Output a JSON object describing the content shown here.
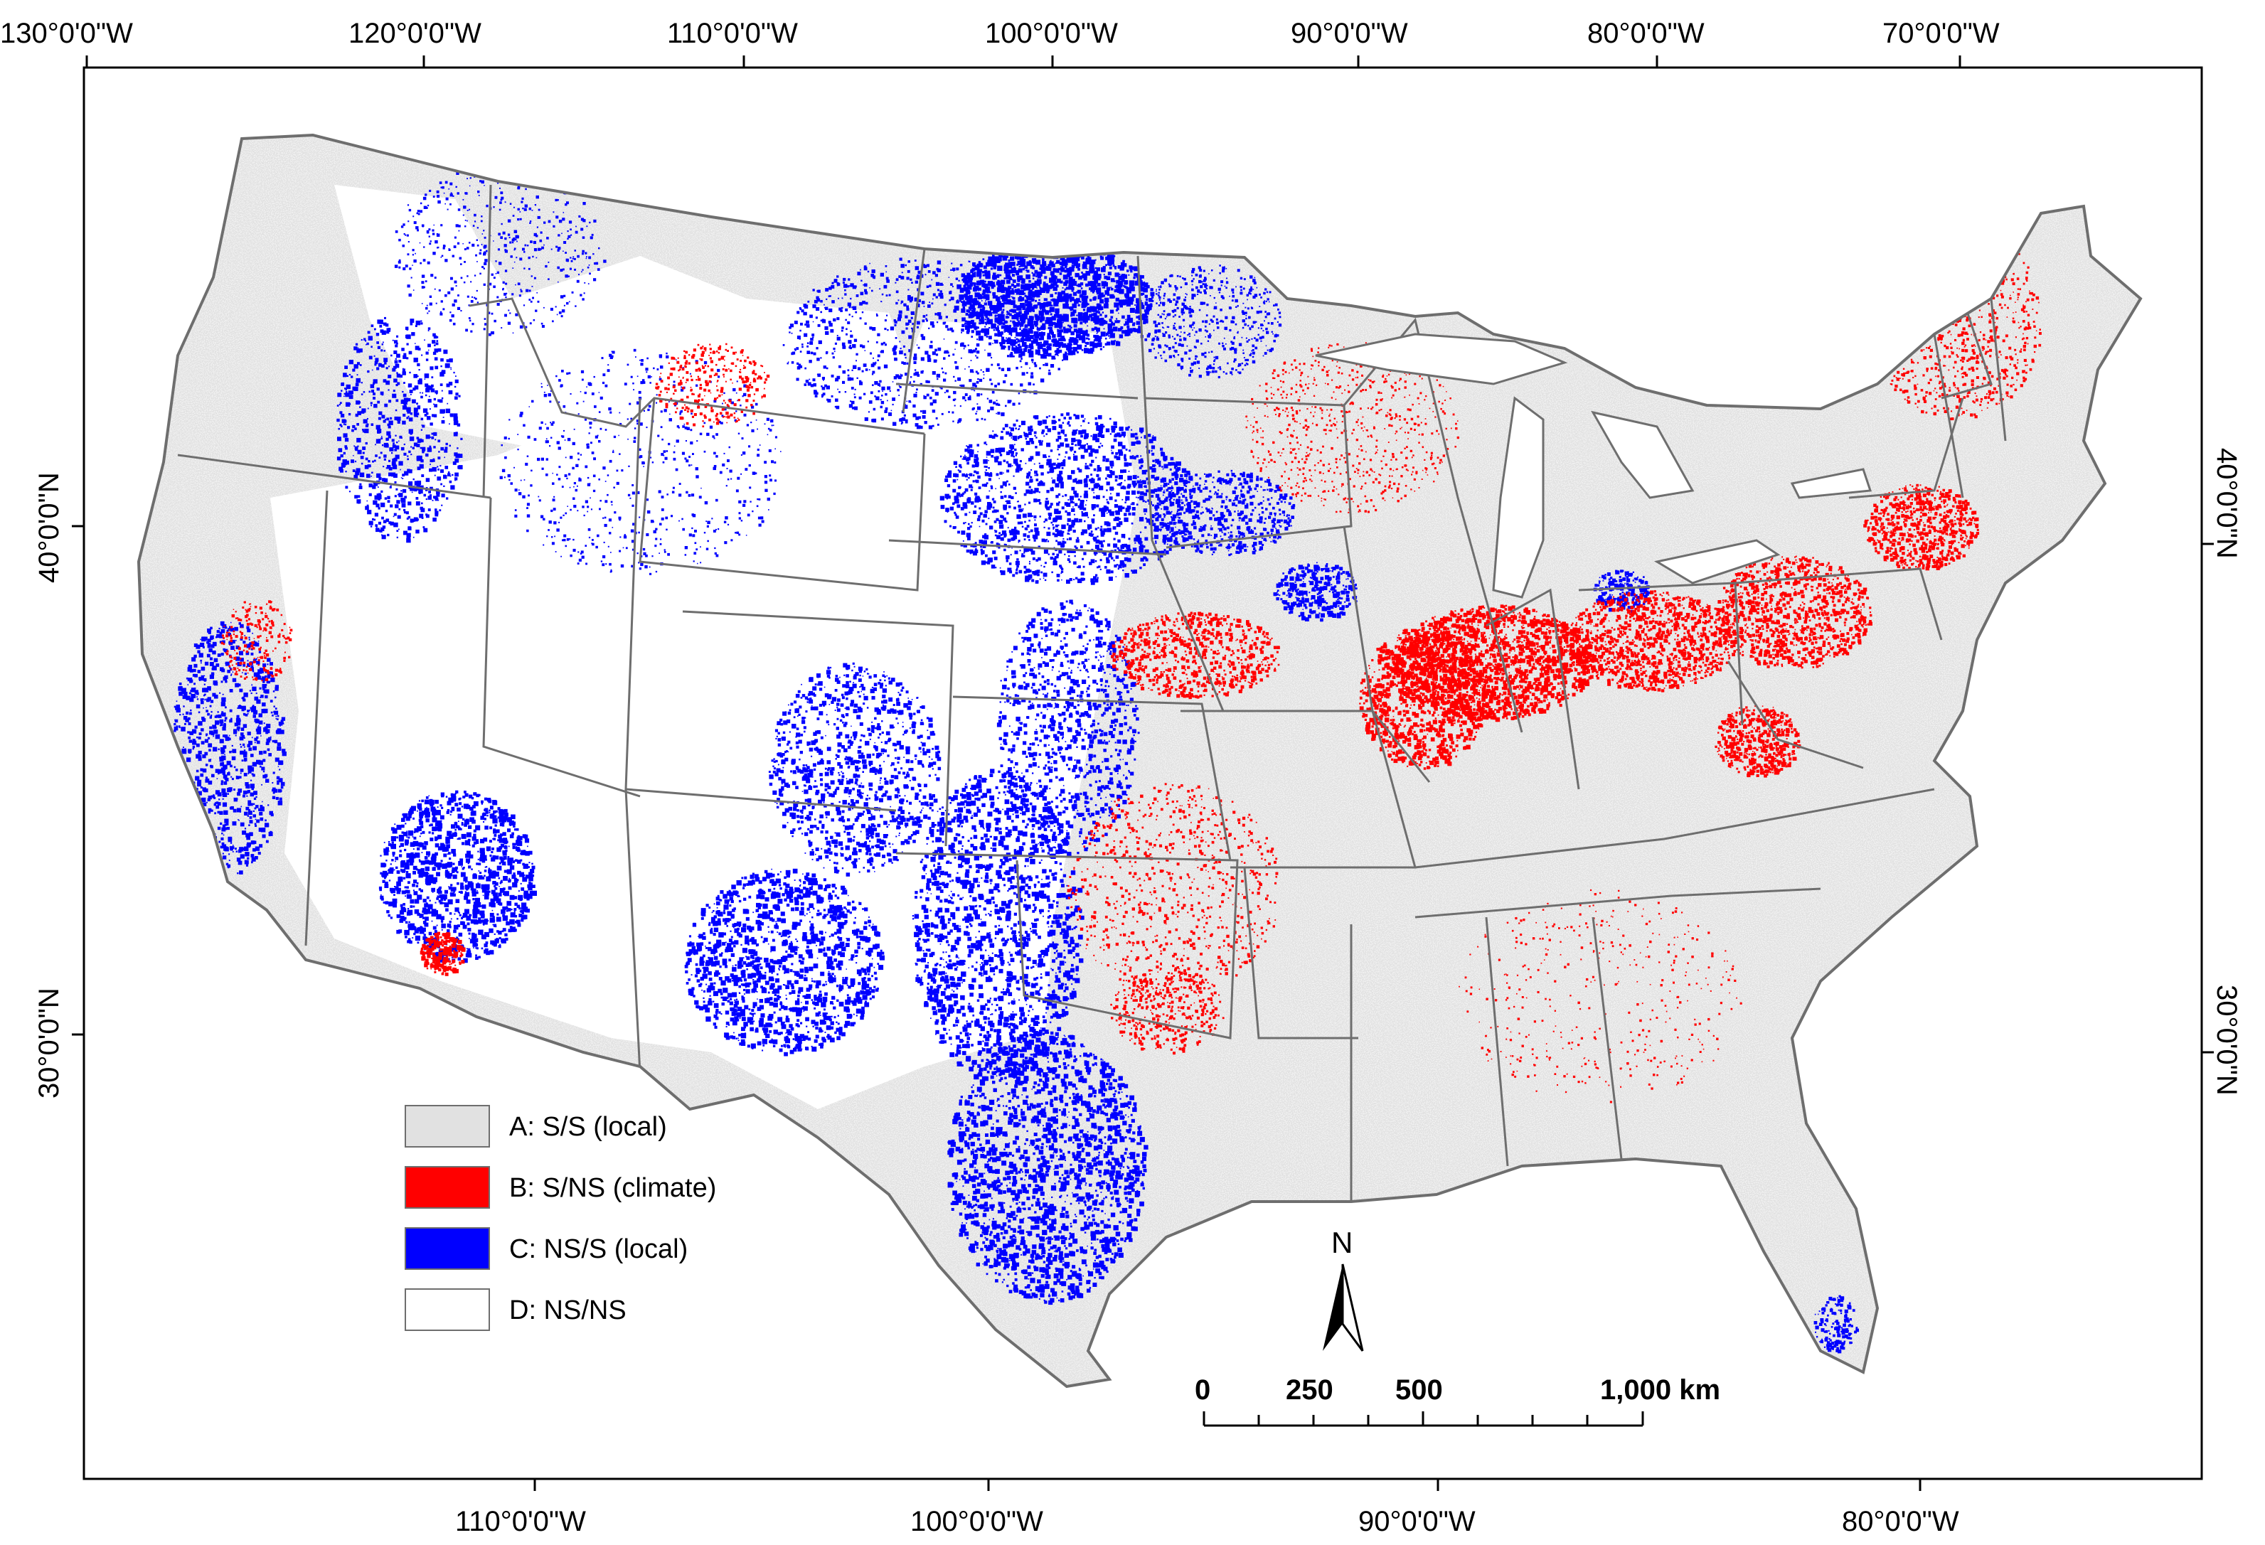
{
  "graticule": {
    "top": [
      "130°0'0\"W",
      "120°0'0\"W",
      "110°0'0\"W",
      "100°0'0\"W",
      "90°0'0\"W",
      "80°0'0\"W",
      "70°0'0\"W"
    ],
    "bottom": [
      "110°0'0\"W",
      "100°0'0\"W",
      "90°0'0\"W",
      "80°0'0\"W"
    ],
    "left": [
      "40°0'0\"N",
      "30°0'0\"N"
    ],
    "right": [
      "40°0'0\"N",
      "30°0'0\"N"
    ]
  },
  "legend": {
    "items": [
      {
        "label": "A: S/S (local)",
        "color": "#e1e1e1"
      },
      {
        "label": "B: S/NS (climate)",
        "color": "#ff0000"
      },
      {
        "label": "C: NS/S (local)",
        "color": "#0000ff"
      },
      {
        "label": "D: NS/NS",
        "color": "#ffffff"
      }
    ]
  },
  "north_arrow": {
    "label": "N"
  },
  "scale_bar": {
    "labels": [
      "0",
      "250",
      "500",
      "1,000 km"
    ]
  },
  "colors": {
    "frame": "#000000",
    "state_border": "#6e6e6e",
    "land": "#e1e1e1",
    "climate": "#ff0000",
    "local": "#0000ff"
  }
}
